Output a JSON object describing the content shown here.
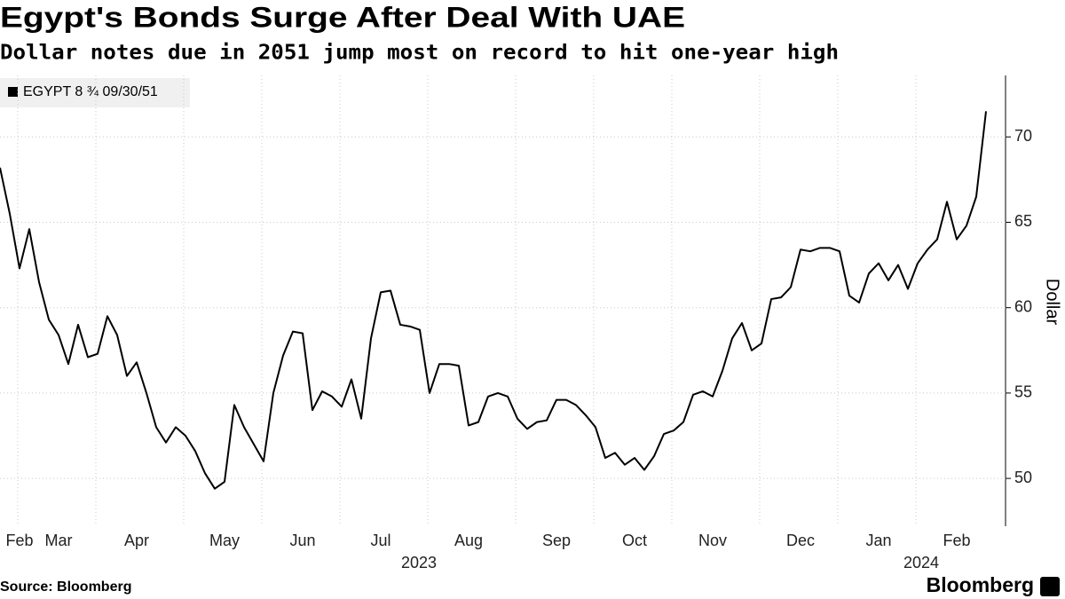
{
  "chart_data": {
    "type": "line",
    "title": "Egypt's Bonds Surge After Deal With UAE",
    "subtitle": "Dollar notes due in 2051 jump most on record to hit one-year high",
    "y_axis_label": "Dollar",
    "source": "Source: Bloomberg",
    "brand": "Bloomberg",
    "categories": [
      null,
      null,
      "Feb",
      null,
      null,
      null,
      "Mar",
      null,
      null,
      null,
      null,
      null,
      null,
      null,
      "Apr",
      null,
      null,
      null,
      null,
      null,
      null,
      null,
      null,
      "May",
      null,
      null,
      null,
      null,
      null,
      null,
      null,
      "Jun",
      null,
      null,
      null,
      null,
      null,
      null,
      null,
      "Jul",
      null,
      null,
      null,
      null,
      null,
      null,
      null,
      null,
      "Aug",
      null,
      null,
      null,
      null,
      null,
      null,
      null,
      null,
      "Sep",
      null,
      null,
      null,
      null,
      null,
      null,
      null,
      "Oct",
      null,
      null,
      null,
      null,
      null,
      null,
      null,
      "Nov",
      null,
      null,
      null,
      null,
      null,
      null,
      null,
      null,
      "Dec",
      null,
      null,
      null,
      null,
      null,
      null,
      null,
      "Jan",
      null,
      null,
      null,
      null,
      null,
      null,
      null,
      "Feb",
      null,
      null,
      null
    ],
    "year_labels": [
      "2023",
      "2024"
    ],
    "series": [
      {
        "name": "EGYPT 8 ¾ 09/30/51",
        "color": "#000000",
        "values": [
          68.2,
          65.5,
          62.3,
          64.6,
          61.5,
          59.3,
          58.4,
          56.7,
          59.0,
          57.1,
          57.3,
          59.5,
          58.4,
          56.0,
          56.8,
          55.0,
          53.0,
          52.1,
          53.0,
          52.5,
          51.6,
          50.3,
          49.4,
          49.8,
          54.3,
          53.0,
          52.0,
          51.0,
          55.0,
          57.2,
          58.6,
          58.5,
          54.0,
          55.1,
          54.8,
          54.2,
          55.8,
          53.5,
          58.2,
          60.9,
          61.0,
          59.0,
          58.9,
          58.7,
          55.0,
          56.7,
          56.7,
          56.6,
          53.1,
          53.3,
          54.8,
          55.0,
          54.8,
          53.5,
          52.9,
          53.3,
          53.4,
          54.6,
          54.6,
          54.3,
          53.7,
          53.0,
          51.2,
          51.5,
          50.8,
          51.2,
          50.5,
          51.3,
          52.6,
          52.8,
          53.3,
          54.9,
          55.1,
          54.8,
          56.3,
          58.2,
          59.1,
          57.5,
          57.9,
          60.5,
          60.6,
          61.2,
          63.4,
          63.3,
          63.5,
          63.5,
          63.3,
          60.7,
          60.3,
          62.0,
          62.6,
          61.6,
          62.5,
          61.1,
          62.6,
          63.4,
          64.0,
          66.2,
          64.0,
          64.8,
          66.5,
          71.5
        ]
      }
    ],
    "ylim": [
      47.2,
      73.6
    ],
    "yticks": [
      50,
      55,
      60,
      65,
      70
    ],
    "y_axis_side": "right",
    "grid": true
  }
}
